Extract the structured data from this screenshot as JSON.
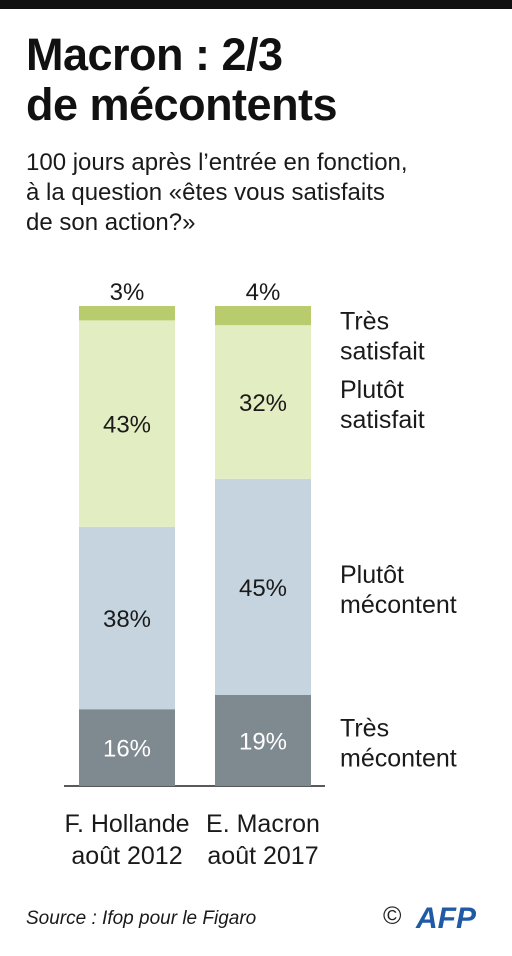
{
  "title": [
    "Macron : 2/3",
    "de mécontents"
  ],
  "subtitle": [
    "100 jours après l’entrée en fonction,",
    "à la question «êtes vous satisfaits",
    "de son action?»"
  ],
  "colors": {
    "tres_satisfait": "#b8cc6e",
    "plutot_satisfait": "#e3edc2",
    "plutot_mecontent": "#c5d4de",
    "tres_mecontent": "#7f8a90"
  },
  "chart_data": {
    "type": "bar",
    "stacked": true,
    "categories": [
      [
        "F. Hollande",
        "août 2012"
      ],
      [
        "E. Macron",
        "août 2017"
      ]
    ],
    "series": [
      {
        "name": [
          "Très",
          "mécontent"
        ],
        "values": [
          16,
          19
        ],
        "labels": [
          "16%",
          "19%"
        ],
        "color": "#7f8a90",
        "label_color": "#ffffff"
      },
      {
        "name": [
          "Plutôt",
          "mécontent"
        ],
        "values": [
          38,
          45
        ],
        "labels": [
          "38%",
          "45%"
        ],
        "color": "#c5d4de",
        "label_color": "#1a1a1a"
      },
      {
        "name": [
          "Plutôt",
          "satisfait"
        ],
        "values": [
          43,
          32
        ],
        "labels": [
          "43%",
          "32%"
        ],
        "color": "#e3edc2",
        "label_color": "#1a1a1a"
      },
      {
        "name": [
          "Très",
          "satisfait"
        ],
        "values": [
          3,
          4
        ],
        "labels": [
          "3%",
          "4%"
        ],
        "color": "#b8cc6e",
        "label_color": "#1a1a1a"
      }
    ]
  },
  "source": "Source : Ifop pour le Figaro",
  "copyright_symbol": "©",
  "logo_text": "AFP"
}
